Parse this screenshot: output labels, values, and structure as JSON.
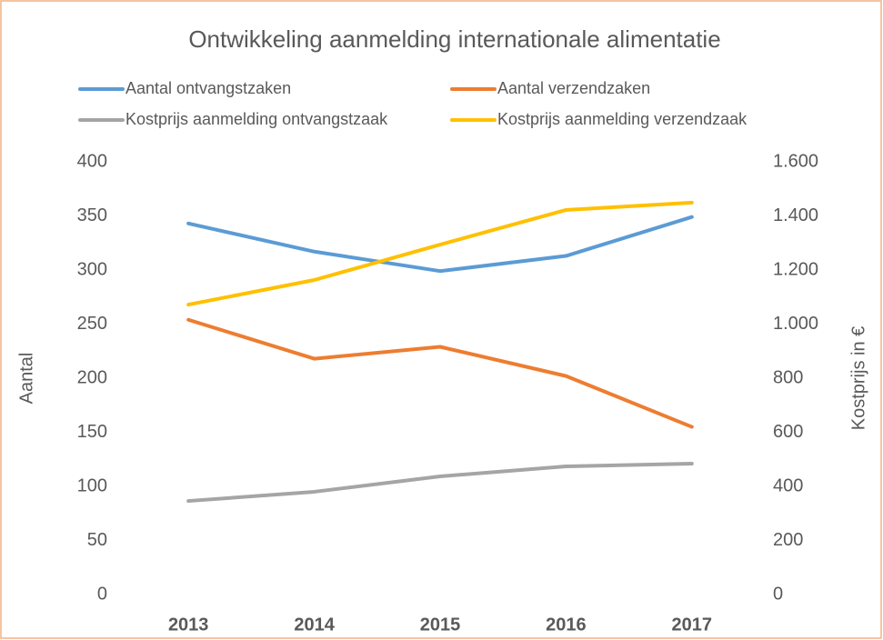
{
  "chart_data": {
    "type": "line",
    "title": "Ontwikkeling aanmelding internationale alimentatie",
    "categories": [
      "2013",
      "2014",
      "2015",
      "2016",
      "2017"
    ],
    "ylabel": "Aantal",
    "y2label": "Kostprijs in €",
    "ylim": [
      0,
      400
    ],
    "yticks": [
      0,
      50,
      100,
      150,
      200,
      250,
      300,
      350,
      400
    ],
    "y2lim": [
      0,
      1600
    ],
    "y2ticks": [
      0,
      200,
      400,
      600,
      800,
      {
        "value": 1000,
        "label": "1.000"
      },
      {
        "value": 1200,
        "label": "1.200"
      },
      {
        "value": 1400,
        "label": "1.400"
      },
      {
        "value": 1600,
        "label": "1.600"
      }
    ],
    "grid": false,
    "series": [
      {
        "name": "Aantal ontvangstzaken",
        "color": "#5b9bd5",
        "values": [
          343,
          317,
          299,
          313,
          349
        ]
      },
      {
        "name": "Aantal verzendzaken",
        "color": "#ed7d31",
        "values": [
          254,
          218,
          229,
          202,
          155
        ]
      },
      {
        "name": "Kostprijs aanmelding ontvangstzaak",
        "color": "#a5a5a5",
        "axis": "y2",
        "values": [
          346,
          380,
          437,
          474,
          484
        ]
      },
      {
        "name": "Kostprijs aanmelding verzendzaak",
        "color": "#ffc000",
        "axis": "y2",
        "values": [
          1072,
          1163,
          1294,
          1422,
          1449
        ]
      }
    ]
  }
}
